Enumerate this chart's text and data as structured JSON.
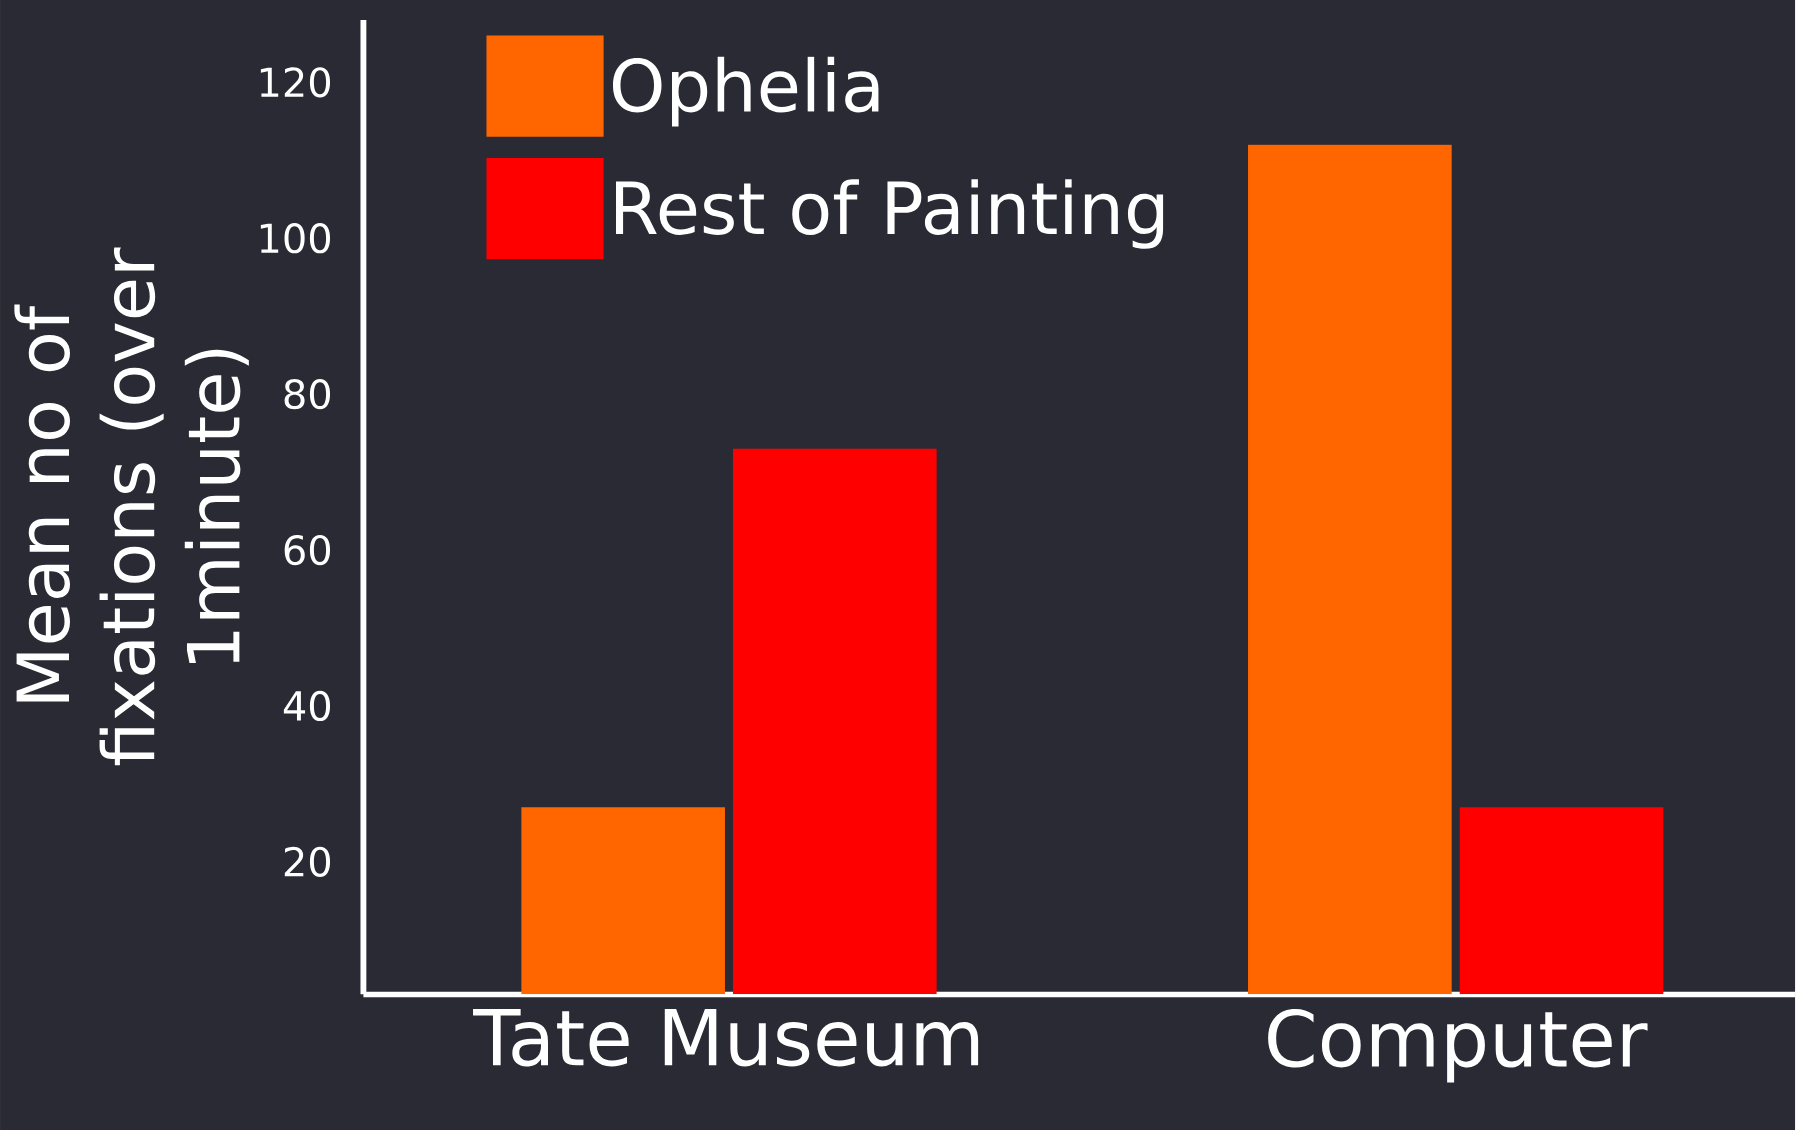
{
  "chart_data": {
    "type": "bar",
    "categories": [
      "Tate Museum",
      "Computer"
    ],
    "ylabel": "Mean no of fixations (over 1minute)",
    "ylim": [
      3,
      128
    ],
    "yticks": [
      20,
      40,
      60,
      80,
      100,
      120
    ],
    "legend": "top left",
    "grid": false,
    "series": [
      {
        "name": "Ophelia",
        "color": "#ff6600",
        "values": [
          27,
          112
        ]
      },
      {
        "name": "Rest of Painting",
        "color": "#ff0000",
        "values": [
          73,
          27
        ]
      }
    ]
  }
}
